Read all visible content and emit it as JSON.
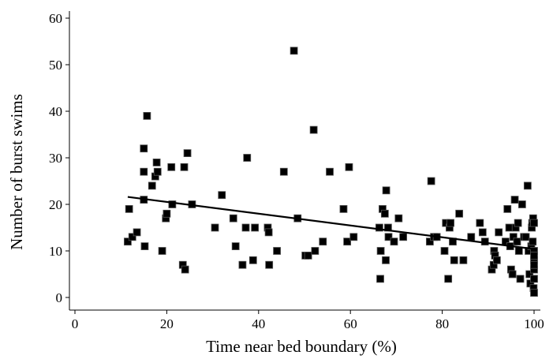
{
  "chart_data": {
    "type": "scatter",
    "title": "",
    "xlabel": "Time near bed boundary (%)",
    "ylabel": "Number of burst swims",
    "xlim": [
      0,
      100
    ],
    "ylim": [
      0,
      60
    ],
    "xticks": [
      0,
      20,
      40,
      60,
      80,
      100
    ],
    "yticks": [
      0,
      10,
      20,
      30,
      40,
      50,
      60
    ],
    "grid": false,
    "legend": "none",
    "marker_color": "#000000",
    "series": [
      {
        "points": [
          [
            11.5,
            12
          ],
          [
            11.8,
            19
          ],
          [
            12.5,
            13
          ],
          [
            13.5,
            14
          ],
          [
            15,
            32
          ],
          [
            15,
            27
          ],
          [
            15,
            21
          ],
          [
            15.2,
            11
          ],
          [
            15.7,
            39
          ],
          [
            16.8,
            24
          ],
          [
            17.5,
            26
          ],
          [
            17.8,
            29
          ],
          [
            18,
            27
          ],
          [
            19,
            10
          ],
          [
            19.8,
            17
          ],
          [
            20,
            18
          ],
          [
            21,
            28
          ],
          [
            21.2,
            20
          ],
          [
            23.5,
            7
          ],
          [
            23.8,
            28
          ],
          [
            24,
            6
          ],
          [
            24.5,
            31
          ],
          [
            25.5,
            20
          ],
          [
            30.5,
            15
          ],
          [
            32,
            22
          ],
          [
            34.5,
            17
          ],
          [
            35,
            11
          ],
          [
            36.5,
            7
          ],
          [
            37.2,
            15
          ],
          [
            37.5,
            30
          ],
          [
            38.8,
            8
          ],
          [
            39.2,
            15
          ],
          [
            42,
            15
          ],
          [
            42.2,
            14
          ],
          [
            42.3,
            7
          ],
          [
            44,
            10
          ],
          [
            45.5,
            27
          ],
          [
            47.7,
            53
          ],
          [
            48.5,
            17
          ],
          [
            50.2,
            9
          ],
          [
            50.8,
            9
          ],
          [
            52,
            36
          ],
          [
            52.3,
            10
          ],
          [
            54,
            12
          ],
          [
            55.5,
            27
          ],
          [
            58.5,
            19
          ],
          [
            59.3,
            12
          ],
          [
            59.7,
            28
          ],
          [
            60.7,
            13
          ],
          [
            66.3,
            15
          ],
          [
            66.5,
            4
          ],
          [
            66.6,
            10
          ],
          [
            67,
            19
          ],
          [
            67.5,
            18
          ],
          [
            67.7,
            8
          ],
          [
            67.8,
            23
          ],
          [
            68.2,
            15
          ],
          [
            68.3,
            13
          ],
          [
            69.5,
            12
          ],
          [
            70.5,
            17
          ],
          [
            71.5,
            13
          ],
          [
            77.3,
            12
          ],
          [
            77.6,
            25
          ],
          [
            78.2,
            13
          ],
          [
            78.8,
            13
          ],
          [
            80.5,
            10
          ],
          [
            80.8,
            16
          ],
          [
            81.3,
            4
          ],
          [
            81.6,
            15
          ],
          [
            81.8,
            16
          ],
          [
            82.3,
            12
          ],
          [
            82.6,
            8
          ],
          [
            83.7,
            18
          ],
          [
            84.6,
            8
          ],
          [
            86.3,
            13
          ],
          [
            88.2,
            16
          ],
          [
            88.8,
            14
          ],
          [
            89.3,
            12
          ],
          [
            90.8,
            6
          ],
          [
            91.2,
            7
          ],
          [
            91.3,
            10
          ],
          [
            91.5,
            9
          ],
          [
            91.9,
            8
          ],
          [
            92.3,
            14
          ],
          [
            93.8,
            12
          ],
          [
            94.2,
            19
          ],
          [
            94.6,
            15
          ],
          [
            94.8,
            11
          ],
          [
            95,
            6
          ],
          [
            95.3,
            5
          ],
          [
            95.5,
            13
          ],
          [
            95.8,
            21
          ],
          [
            96,
            15
          ],
          [
            96.3,
            12
          ],
          [
            96.5,
            16
          ],
          [
            96.7,
            10
          ],
          [
            97,
            4
          ],
          [
            97.4,
            20
          ],
          [
            97.8,
            13
          ],
          [
            98.2,
            13
          ],
          [
            98.6,
            24
          ],
          [
            98.8,
            10
          ],
          [
            99,
            5
          ],
          [
            99.2,
            3
          ],
          [
            99.4,
            11
          ],
          [
            99.5,
            15
          ],
          [
            99.6,
            16
          ],
          [
            99.7,
            12
          ],
          [
            99.8,
            17
          ],
          [
            99.9,
            2
          ],
          [
            100,
            1
          ],
          [
            100,
            4
          ],
          [
            100,
            6
          ],
          [
            100,
            8
          ],
          [
            100,
            10
          ],
          [
            100,
            16
          ],
          [
            100,
            7
          ],
          [
            100,
            9
          ]
        ]
      }
    ],
    "trendline": {
      "x": [
        11.5,
        100
      ],
      "y": [
        21.6,
        10.4
      ]
    }
  }
}
